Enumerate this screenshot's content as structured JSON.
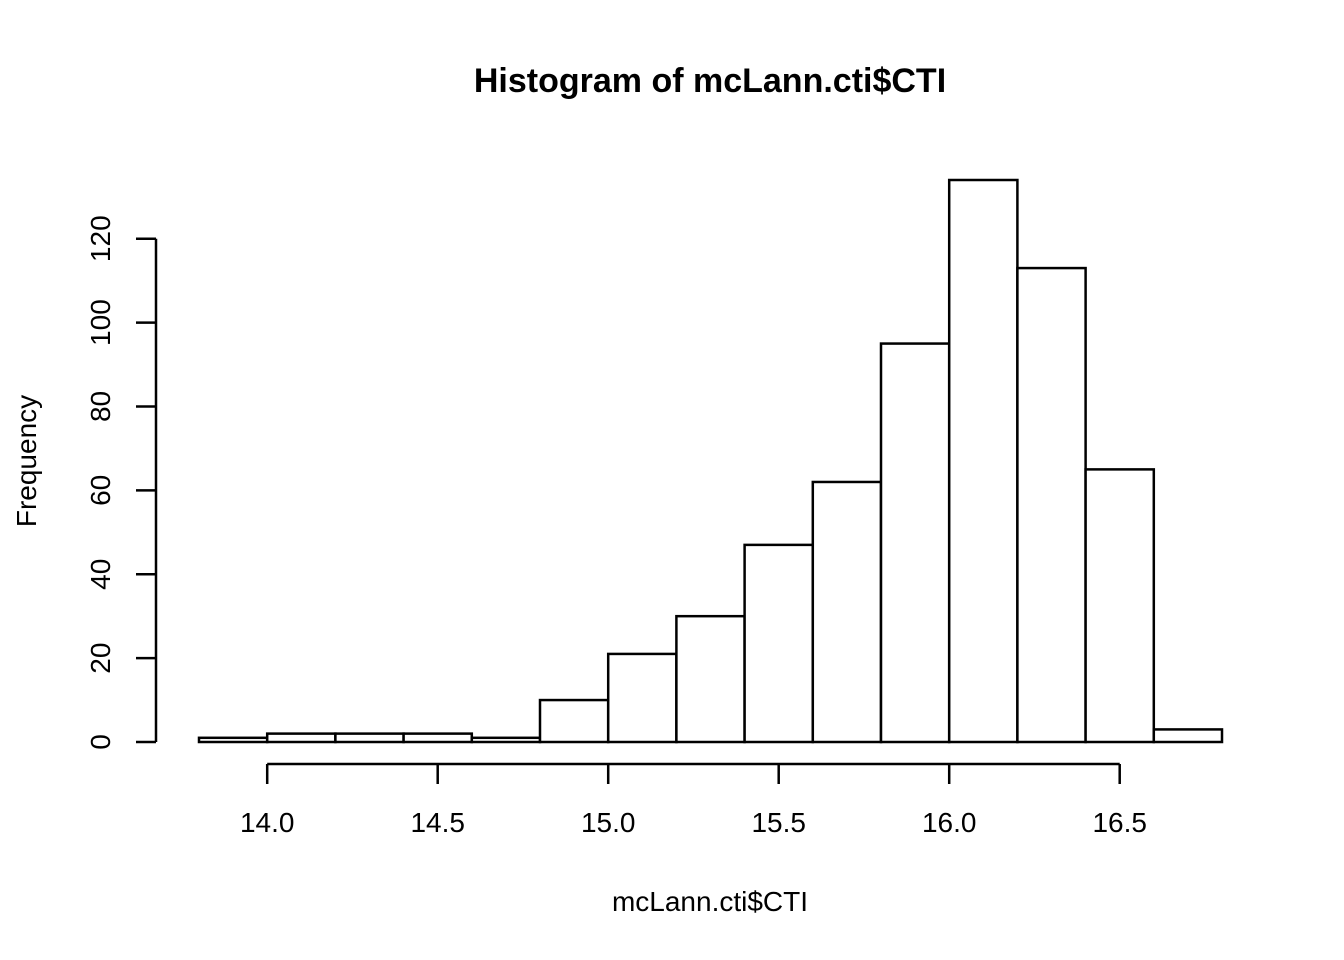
{
  "chart_data": {
    "type": "bar",
    "title": "Histogram of mcLann.cti$CTI",
    "xlabel": "mcLann.cti$CTI",
    "ylabel": "Frequency",
    "bin_edges": [
      13.8,
      14.0,
      14.2,
      14.4,
      14.6,
      14.8,
      15.0,
      15.2,
      15.4,
      15.6,
      15.8,
      16.0,
      16.2,
      16.4,
      16.6,
      16.8
    ],
    "values": [
      1,
      2,
      2,
      2,
      1,
      10,
      21,
      30,
      47,
      62,
      95,
      134,
      113,
      65,
      3
    ],
    "x_ticks": [
      "14.0",
      "14.5",
      "15.0",
      "15.5",
      "16.0",
      "16.5"
    ],
    "y_ticks": [
      "0",
      "20",
      "40",
      "60",
      "80",
      "100",
      "120"
    ],
    "xlim": [
      13.8,
      16.8
    ],
    "ylim": [
      0,
      134
    ],
    "grid": false,
    "bar_fill": "#ffffff",
    "bar_stroke": "#000000"
  }
}
